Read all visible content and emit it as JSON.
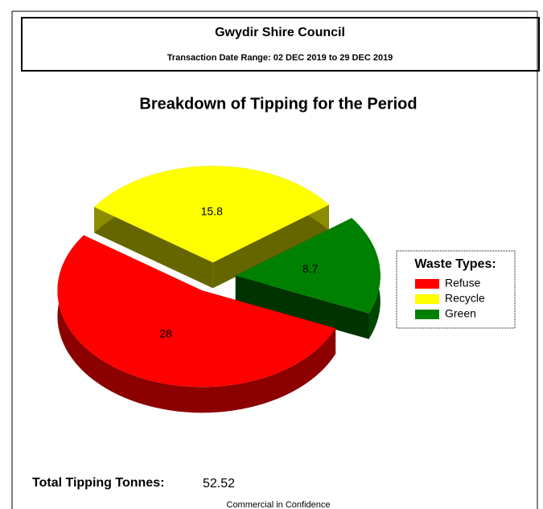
{
  "header": {
    "title": "Gwydir Shire Council",
    "subtitle": "Transaction Date Range: 02 DEC 2019 to 29 DEC 2019"
  },
  "chart_data": {
    "type": "pie",
    "title": "Breakdown of Tipping for the Period",
    "categories": [
      "Refuse",
      "Recycle",
      "Green"
    ],
    "values": [
      28,
      15.8,
      8.7
    ],
    "colors": [
      "#ff0000",
      "#ffff00",
      "#008000"
    ],
    "legend_title": "Waste Types:",
    "legend": "right"
  },
  "footer": {
    "total_label": "Total Tipping Tonnes:",
    "total_value": "52.52",
    "note": "Commercial in Confidence"
  }
}
